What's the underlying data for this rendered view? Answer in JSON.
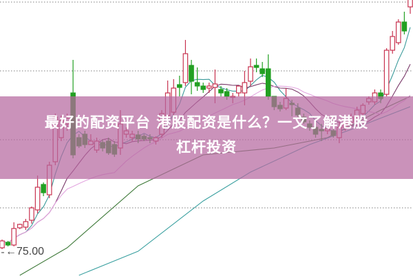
{
  "title": {
    "line1": "最好的配资平台 港股配资是什么？一文了解港股",
    "line2": "杠杆投资"
  },
  "price_marker": "←75.00",
  "colors": {
    "up": "#c8324f",
    "down": "#22a022",
    "banner": "#c48db5",
    "ma5": "#3a9a9a",
    "ma10": "#7a3a6a",
    "ma20": "#e3a6e0",
    "long_green": "#3f7a3a",
    "long_cyan": "#3aa0a0",
    "grid": "#999999"
  },
  "chart_data": {
    "type": "candlestick",
    "title": "",
    "xlabel": "",
    "ylabel": "",
    "ylim": [
      73.3,
      93.35
    ],
    "grid": true,
    "y_tick_labels": [
      "75.00"
    ],
    "candles": [
      [
        75.35,
        75.85,
        75.95,
        75.25
      ],
      [
        75.75,
        75.55,
        75.85,
        75.45
      ],
      [
        75.55,
        76.75,
        77.2,
        75.45
      ],
      [
        76.8,
        77.05,
        77.1,
        76.7
      ],
      [
        76.85,
        77.25,
        77.45,
        76.65
      ],
      [
        77.35,
        78.25,
        78.35,
        77.1
      ],
      [
        78.1,
        79.75,
        80.6,
        77.85
      ],
      [
        79.95,
        79.35,
        80.1,
        79.1
      ],
      [
        79.2,
        81.35,
        81.6,
        78.95
      ],
      [
        81.6,
        84.85,
        85.1,
        81.35
      ],
      [
        83.35,
        84.6,
        84.95,
        83.1
      ],
      [
        84.35,
        84.75,
        85.1,
        83.85
      ],
      [
        86.6,
        82.1,
        89.0,
        81.85
      ],
      [
        83.35,
        82.75,
        83.6,
        82.6
      ],
      [
        83.6,
        82.85,
        83.85,
        82.6
      ],
      [
        82.85,
        83.1,
        83.6,
        82.85
      ],
      [
        82.45,
        83.1,
        83.35,
        82.25
      ],
      [
        83.0,
        82.6,
        83.2,
        82.35
      ],
      [
        83.1,
        82.25,
        83.35,
        82.1
      ],
      [
        82.85,
        82.15,
        83.1,
        81.95
      ],
      [
        82.6,
        84.35,
        85.35,
        82.1
      ],
      [
        83.6,
        83.85,
        84.1,
        83.35
      ],
      [
        83.35,
        83.6,
        83.85,
        83.1
      ],
      [
        83.55,
        83.25,
        83.85,
        82.95
      ],
      [
        83.45,
        83.25,
        83.6,
        83.1
      ],
      [
        83.35,
        83.3,
        83.6,
        82.95
      ],
      [
        83.1,
        83.35,
        83.45,
        82.85
      ],
      [
        83.6,
        85.1,
        85.35,
        83.35
      ],
      [
        84.95,
        86.6,
        87.5,
        84.75
      ],
      [
        85.2,
        86.95,
        87.6,
        84.85
      ],
      [
        87.2,
        87.0,
        87.85,
        86.35
      ],
      [
        87.35,
        89.45,
        90.45,
        87.1
      ],
      [
        88.6,
        87.45,
        89.0,
        86.5
      ],
      [
        87.35,
        87.1,
        88.45,
        86.75
      ],
      [
        87.1,
        86.85,
        87.35,
        86.6
      ],
      [
        86.95,
        87.1,
        87.35,
        86.6
      ],
      [
        87.0,
        87.25,
        88.3,
        85.85
      ],
      [
        86.85,
        86.6,
        87.1,
        86.35
      ],
      [
        86.7,
        86.35,
        86.95,
        86.1
      ],
      [
        86.35,
        86.35,
        86.6,
        85.85
      ],
      [
        86.6,
        87.1,
        87.1,
        86.35
      ],
      [
        86.6,
        87.35,
        88.2,
        85.7
      ],
      [
        87.45,
        88.5,
        89.1,
        87.1
      ],
      [
        88.6,
        88.45,
        89.1,
        88.1
      ],
      [
        88.35,
        88.0,
        88.85,
        87.75
      ],
      [
        88.35,
        86.35,
        89.4,
        86.1
      ],
      [
        86.35,
        85.6,
        86.35,
        85.35
      ],
      [
        85.7,
        85.45,
        85.95,
        85.25
      ],
      [
        85.5,
        86.2,
        86.95,
        85.35
      ],
      [
        85.85,
        85.75,
        86.1,
        84.9
      ],
      [
        85.5,
        85.0,
        85.85,
        84.85
      ],
      [
        84.85,
        84.5,
        85.1,
        84.35
      ],
      [
        84.35,
        84.1,
        84.6,
        83.85
      ],
      [
        84.1,
        83.6,
        84.35,
        83.35
      ],
      [
        83.95,
        83.85,
        84.35,
        83.1
      ],
      [
        83.85,
        84.0,
        84.35,
        83.6
      ],
      [
        83.85,
        83.5,
        84.1,
        83.35
      ],
      [
        83.35,
        84.1,
        84.5,
        82.95
      ],
      [
        84.1,
        84.35,
        84.85,
        83.85
      ],
      [
        84.45,
        84.85,
        85.1,
        84.25
      ],
      [
        84.95,
        85.35,
        85.6,
        84.6
      ],
      [
        85.1,
        85.7,
        85.85,
        84.95
      ],
      [
        85.95,
        86.2,
        86.35,
        85.75
      ],
      [
        85.95,
        86.6,
        86.85,
        85.75
      ],
      [
        86.6,
        86.2,
        86.85,
        85.85
      ],
      [
        86.5,
        89.7,
        89.85,
        86.35
      ],
      [
        89.7,
        90.7,
        91.1,
        89.45
      ],
      [
        90.25,
        91.75,
        91.95,
        90.1
      ],
      [
        91.75,
        91.1,
        92.5,
        90.85
      ],
      [
        92.85,
        93.6,
        93.85,
        92.35
      ]
    ],
    "candle_fields": [
      "open",
      "close",
      "high",
      "low"
    ],
    "moving_averages": [
      {
        "period": 5,
        "color_key": "ma5"
      },
      {
        "period": 10,
        "color_key": "ma10"
      },
      {
        "period": 20,
        "color_key": "ma20"
      }
    ],
    "long_lines": [
      {
        "color_key": "long_green",
        "points": [
          [
            3,
            73.35
          ],
          [
            11,
            75.35
          ],
          [
            23,
            79.85
          ],
          [
            34,
            82.1
          ],
          [
            46,
            82.6
          ],
          [
            55,
            83.35
          ],
          [
            64,
            85.35
          ],
          [
            69,
            86.35
          ]
        ]
      },
      {
        "color_key": "long_cyan",
        "points": [
          [
            13,
            73.35
          ],
          [
            23,
            75.1
          ],
          [
            34,
            78.75
          ],
          [
            42,
            80.85
          ],
          [
            52,
            82.85
          ],
          [
            60,
            84.1
          ],
          [
            69,
            85.6
          ]
        ]
      }
    ]
  }
}
